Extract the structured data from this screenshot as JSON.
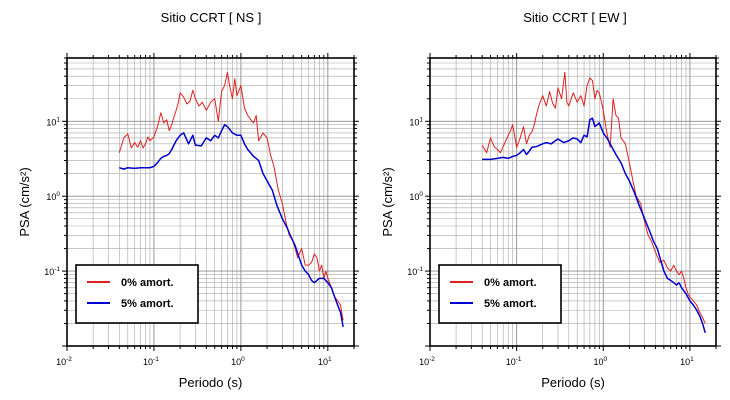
{
  "chart_data": [
    {
      "type": "line",
      "title": "Sitio CCRT [ NS ]",
      "xlabel": "Periodo (s)",
      "ylabel": "PSA (cm/s²)",
      "xscale": "log",
      "yscale": "log",
      "xlim": [
        0.01,
        20
      ],
      "ylim": [
        0.01,
        70
      ],
      "grid": true,
      "legend": "bottom-left",
      "series": [
        {
          "name": "0% amort.",
          "color": "#e02020",
          "x": [
            0.04,
            0.045,
            0.05,
            0.055,
            0.06,
            0.065,
            0.07,
            0.075,
            0.08,
            0.085,
            0.09,
            0.1,
            0.11,
            0.12,
            0.13,
            0.14,
            0.15,
            0.16,
            0.17,
            0.18,
            0.19,
            0.2,
            0.22,
            0.24,
            0.26,
            0.28,
            0.3,
            0.33,
            0.36,
            0.4,
            0.45,
            0.5,
            0.55,
            0.6,
            0.65,
            0.7,
            0.75,
            0.8,
            0.85,
            0.9,
            1.0,
            1.1,
            1.2,
            1.3,
            1.4,
            1.5,
            1.6,
            1.8,
            2.0,
            2.2,
            2.4,
            2.7,
            3.0,
            3.3,
            3.6,
            4.0,
            4.5,
            5.0,
            5.5,
            6.0,
            6.5,
            7.0,
            7.5,
            8.0,
            8.5,
            9.0,
            9.5,
            10,
            11,
            12,
            13,
            14,
            15
          ],
          "values": [
            3.8,
            6.0,
            6.8,
            4.4,
            5.2,
            4.5,
            5.5,
            4.4,
            5.0,
            6.2,
            5.5,
            6.2,
            8.5,
            13.0,
            9.5,
            10.5,
            7.5,
            9.0,
            11.5,
            14.0,
            17.5,
            24.0,
            21.0,
            17.0,
            18.5,
            26.0,
            20.0,
            16.0,
            18.0,
            14.0,
            18.0,
            20.0,
            10.0,
            25.0,
            30.0,
            45.0,
            28.0,
            20.0,
            37.0,
            22.0,
            30.0,
            15.0,
            12.0,
            10.5,
            9.5,
            12.0,
            5.5,
            7.0,
            6.0,
            3.5,
            2.5,
            1.2,
            0.8,
            0.45,
            0.3,
            0.25,
            0.15,
            0.2,
            0.12,
            0.12,
            0.13,
            0.17,
            0.15,
            0.1,
            0.12,
            0.08,
            0.1,
            0.08,
            0.06,
            0.045,
            0.04,
            0.035,
            0.022
          ]
        },
        {
          "name": "5% amort.",
          "color": "#0000d0",
          "x": [
            0.04,
            0.045,
            0.05,
            0.06,
            0.07,
            0.08,
            0.09,
            0.1,
            0.11,
            0.12,
            0.13,
            0.14,
            0.15,
            0.16,
            0.18,
            0.2,
            0.22,
            0.25,
            0.28,
            0.3,
            0.35,
            0.4,
            0.45,
            0.5,
            0.55,
            0.6,
            0.65,
            0.7,
            0.8,
            0.9,
            1.0,
            1.1,
            1.2,
            1.4,
            1.6,
            1.8,
            2.0,
            2.3,
            2.6,
            3.0,
            3.4,
            3.8,
            4.2,
            4.6,
            5.0,
            5.5,
            6.0,
            6.5,
            7.0,
            7.5,
            8.0,
            9.0,
            10,
            11,
            12,
            13,
            14,
            15
          ],
          "values": [
            2.4,
            2.3,
            2.4,
            2.35,
            2.4,
            2.4,
            2.4,
            2.5,
            2.8,
            3.2,
            3.4,
            3.5,
            3.7,
            4.2,
            5.5,
            6.5,
            7.0,
            5.0,
            6.5,
            4.8,
            4.7,
            6.0,
            5.5,
            6.5,
            6.0,
            7.5,
            9.0,
            8.5,
            7.0,
            6.5,
            6.5,
            5.0,
            4.2,
            3.4,
            3.0,
            2.0,
            1.6,
            1.2,
            0.75,
            0.5,
            0.38,
            0.28,
            0.22,
            0.16,
            0.12,
            0.1,
            0.09,
            0.075,
            0.07,
            0.075,
            0.08,
            0.08,
            0.07,
            0.06,
            0.045,
            0.035,
            0.028,
            0.018
          ]
        }
      ]
    },
    {
      "type": "line",
      "title": "Sitio CCRT [ EW ]",
      "xlabel": "Periodo (s)",
      "ylabel": "PSA (cm/s²)",
      "xscale": "log",
      "yscale": "log",
      "xlim": [
        0.01,
        20
      ],
      "ylim": [
        0.01,
        70
      ],
      "grid": true,
      "legend": "bottom-left",
      "series": [
        {
          "name": "0% amort.",
          "color": "#e02020",
          "x": [
            0.04,
            0.045,
            0.05,
            0.055,
            0.06,
            0.065,
            0.07,
            0.075,
            0.08,
            0.085,
            0.09,
            0.1,
            0.11,
            0.12,
            0.13,
            0.14,
            0.15,
            0.16,
            0.17,
            0.18,
            0.19,
            0.2,
            0.22,
            0.24,
            0.26,
            0.28,
            0.3,
            0.33,
            0.36,
            0.38,
            0.4,
            0.45,
            0.5,
            0.55,
            0.6,
            0.65,
            0.7,
            0.75,
            0.8,
            0.85,
            0.9,
            1.0,
            1.1,
            1.2,
            1.3,
            1.4,
            1.5,
            1.6,
            1.8,
            2.0,
            2.2,
            2.4,
            2.7,
            3.0,
            3.3,
            3.6,
            4.0,
            4.5,
            5.0,
            5.5,
            6.0,
            6.5,
            7.0,
            7.5,
            8.0,
            8.5,
            9.0,
            9.5,
            10,
            11,
            12,
            13,
            14,
            15
          ],
          "values": [
            4.8,
            3.8,
            6.0,
            4.6,
            4.2,
            3.8,
            4.6,
            5.5,
            6.5,
            7.5,
            9.0,
            4.5,
            6.0,
            8.5,
            5.0,
            6.5,
            7.2,
            9.0,
            12.5,
            16.0,
            19.0,
            22.0,
            16.0,
            25.0,
            17.5,
            15.0,
            28.0,
            20.0,
            45.0,
            18.0,
            16.0,
            24.0,
            18.0,
            22.0,
            16.0,
            30.0,
            38.0,
            35.0,
            20.0,
            26.0,
            24.0,
            14.0,
            7.0,
            4.5,
            20.0,
            12.0,
            11.0,
            6.0,
            5.0,
            2.8,
            1.6,
            1.0,
            0.8,
            0.45,
            0.3,
            0.25,
            0.18,
            0.13,
            0.14,
            0.11,
            0.1,
            0.12,
            0.1,
            0.09,
            0.1,
            0.08,
            0.06,
            0.05,
            0.045,
            0.04,
            0.035,
            0.028,
            0.024,
            0.02
          ]
        },
        {
          "name": "5% amort.",
          "color": "#0000d0",
          "x": [
            0.04,
            0.05,
            0.06,
            0.07,
            0.08,
            0.09,
            0.1,
            0.11,
            0.12,
            0.13,
            0.14,
            0.15,
            0.17,
            0.2,
            0.22,
            0.25,
            0.28,
            0.3,
            0.35,
            0.4,
            0.45,
            0.5,
            0.55,
            0.6,
            0.65,
            0.7,
            0.75,
            0.8,
            0.9,
            1.0,
            1.1,
            1.2,
            1.4,
            1.6,
            1.8,
            2.0,
            2.3,
            2.6,
            3.0,
            3.4,
            3.8,
            4.2,
            4.6,
            5.0,
            5.5,
            6.0,
            6.5,
            7.0,
            7.5,
            8.0,
            9.0,
            10,
            11,
            12,
            13,
            14,
            15
          ],
          "values": [
            3.1,
            3.1,
            3.2,
            3.3,
            3.2,
            3.4,
            3.5,
            3.8,
            4.2,
            3.6,
            4.0,
            4.5,
            4.6,
            5.0,
            5.2,
            5.0,
            5.5,
            5.8,
            5.2,
            5.5,
            6.0,
            5.8,
            5.2,
            6.5,
            6.2,
            10.5,
            11.0,
            8.5,
            9.5,
            7.0,
            6.0,
            5.0,
            3.6,
            2.8,
            2.0,
            1.6,
            1.1,
            0.75,
            0.5,
            0.35,
            0.25,
            0.2,
            0.14,
            0.1,
            0.08,
            0.075,
            0.07,
            0.065,
            0.07,
            0.06,
            0.05,
            0.04,
            0.035,
            0.03,
            0.025,
            0.02,
            0.015
          ]
        }
      ]
    }
  ]
}
